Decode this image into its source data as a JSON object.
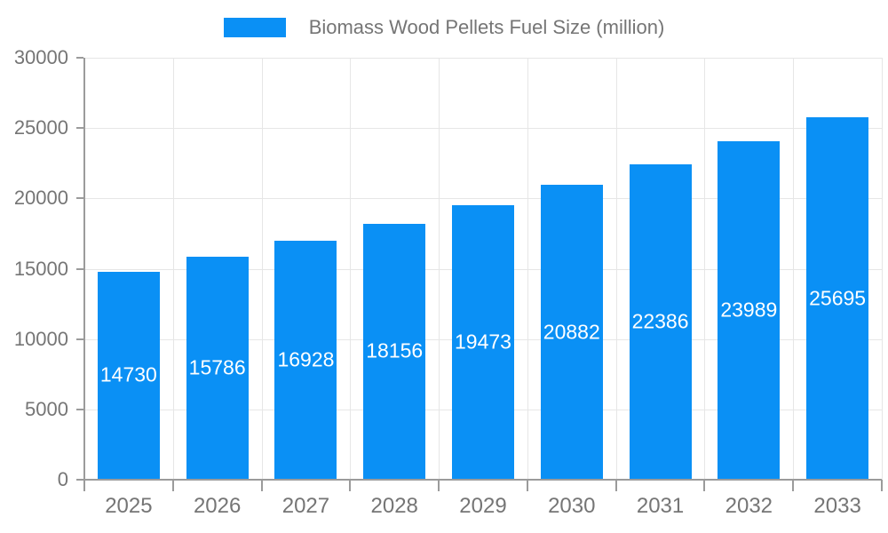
{
  "legend": {
    "label": "Biomass Wood Pellets Fuel Size (million)",
    "swatch_color": "#0a90f5"
  },
  "chart_data": {
    "type": "bar",
    "title": "Biomass Wood Pellets Fuel Size (million)",
    "categories": [
      "2025",
      "2026",
      "2027",
      "2028",
      "2029",
      "2030",
      "2031",
      "2032",
      "2033"
    ],
    "values": [
      14730,
      15786,
      16928,
      18156,
      19473,
      20882,
      22386,
      23989,
      25695
    ],
    "xlabel": "",
    "ylabel": "",
    "ylim": [
      0,
      30000
    ],
    "ytick_interval": 5000,
    "yticks": [
      "0",
      "5000",
      "10000",
      "15000",
      "20000",
      "25000",
      "30000"
    ],
    "grid": true,
    "legend_position": "top-center",
    "value_label_position": "inside-center",
    "colors": {
      "bar": "#0a90f5",
      "grid": "#e6e6e6",
      "axis": "#9b9b9b",
      "tick_text": "#757575",
      "value_text": "#ffffff"
    }
  }
}
